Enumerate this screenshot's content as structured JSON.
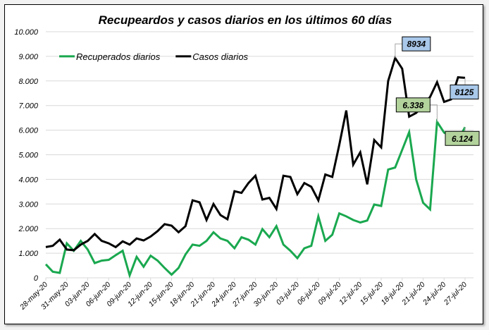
{
  "chart_data": {
    "type": "line",
    "title": "Recupeardos y casos diarios en los últimos 60 días",
    "xlabel": "",
    "ylabel": "",
    "ylim": [
      0,
      10000
    ],
    "yticks": [
      "0",
      "1.000",
      "2.000",
      "3.000",
      "4.000",
      "5.000",
      "6.000",
      "7.000",
      "8.000",
      "9.000",
      "10.000"
    ],
    "ytick_values": [
      0,
      1000,
      2000,
      3000,
      4000,
      5000,
      6000,
      7000,
      8000,
      9000,
      10000
    ],
    "xticks": [
      "28-may-20",
      "31-may-20",
      "03-jun-20",
      "06-jun-20",
      "09-jun-20",
      "12-jun-20",
      "15-jun-20",
      "18-jun-20",
      "21-jun-20",
      "24-jun-20",
      "27-jun-20",
      "30-jun-20",
      "03-jul-20",
      "06-jul-20",
      "09-jul-20",
      "12-jul-20",
      "15-jul-20",
      "18-jul-20",
      "21-jul-20",
      "24-jul-20",
      "27-jul-20"
    ],
    "xtick_step_days": 3,
    "grid": true,
    "legend_position": "top-left",
    "series": [
      {
        "name": "Recuperados diarios",
        "color": "#1aa84f",
        "values": [
          550,
          250,
          200,
          1400,
          1100,
          1500,
          1150,
          600,
          700,
          730,
          920,
          1100,
          100,
          850,
          450,
          900,
          700,
          400,
          130,
          400,
          950,
          1350,
          1300,
          1500,
          1850,
          1600,
          1500,
          1200,
          1650,
          1550,
          1350,
          1980,
          1650,
          2100,
          1350,
          1100,
          800,
          1200,
          1300,
          2500,
          1500,
          1750,
          2620,
          2500,
          2350,
          2250,
          2330,
          2980,
          2920,
          4400,
          4480,
          5200,
          5920,
          4000,
          3050,
          2780,
          6338,
          5900,
          5750,
          5600,
          6124
        ]
      },
      {
        "name": "Casos diarios",
        "color": "#000000",
        "values": [
          1250,
          1300,
          1550,
          1150,
          1120,
          1350,
          1500,
          1780,
          1500,
          1400,
          1250,
          1480,
          1350,
          1600,
          1520,
          1680,
          1900,
          2180,
          2120,
          1850,
          2100,
          3150,
          3070,
          2350,
          3000,
          2550,
          2380,
          3520,
          3450,
          3850,
          4150,
          3180,
          3250,
          2800,
          4150,
          4100,
          3400,
          3850,
          3700,
          3150,
          4200,
          4100,
          5400,
          6800,
          4600,
          5100,
          3800,
          5600,
          5300,
          8000,
          8934,
          8500,
          6550,
          6700,
          7000,
          7350,
          7950,
          7150,
          7250,
          8150,
          8125
        ]
      }
    ],
    "annotations": [
      {
        "series": "Casos diarios",
        "index": 50,
        "text": "8934",
        "fill": "#a9c8ea"
      },
      {
        "series": "Casos diarios",
        "index": 60,
        "text": "8125",
        "fill": "#a9c8ea"
      },
      {
        "series": "Recuperados diarios",
        "index": 56,
        "text": "6.338",
        "fill": "#b3d39c"
      },
      {
        "series": "Recuperados diarios",
        "index": 60,
        "text": "6.124",
        "fill": "#b3d39c"
      }
    ]
  }
}
